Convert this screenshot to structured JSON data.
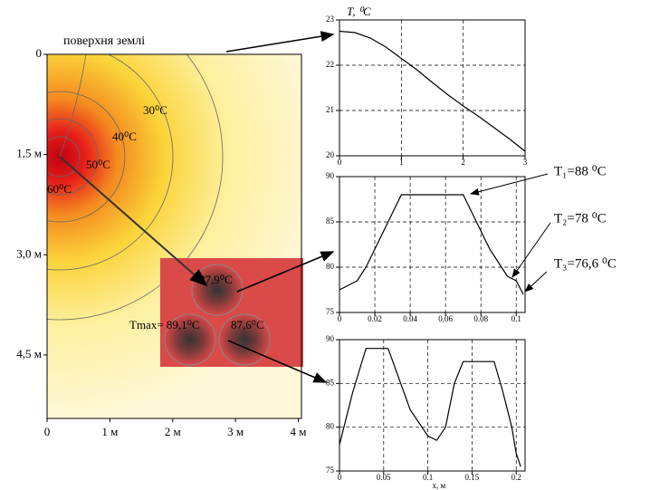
{
  "chart_data": [
    {
      "type": "heatmap",
      "xlim": [
        0,
        4.05
      ],
      "ylim": [
        0,
        5.45
      ],
      "xticks": [
        0,
        {
          "value": 1,
          "label": "1 м"
        },
        {
          "value": 2,
          "label": "2 м"
        },
        {
          "value": 3,
          "label": "3 м"
        },
        {
          "value": 4,
          "label": "4 м"
        }
      ],
      "yticks": [
        0,
        {
          "value": 1.5,
          "label": "1,5 м"
        },
        {
          "value": 3,
          "label": "3,0 м"
        },
        {
          "value": 4.5,
          "label": "4,5 м"
        }
      ],
      "annotations": [
        "поверхня землі",
        "30⁰C",
        "40⁰C",
        "50⁰C",
        "60⁰C",
        "87,9⁰C",
        "Tmax= 89,1⁰C",
        "87,6⁰C"
      ]
    },
    {
      "type": "line",
      "ylabel": "T, ⁰C",
      "xlim": [
        0,
        3
      ],
      "ylim": [
        20,
        23
      ],
      "xticks": [
        0,
        1,
        2,
        3
      ],
      "yticks": [
        20,
        21,
        22,
        23
      ],
      "grid": true,
      "color": "#000",
      "x": [
        0,
        0.25,
        0.5,
        0.75,
        1,
        1.25,
        1.5,
        1.75,
        2,
        2.25,
        2.5,
        2.75,
        3
      ],
      "values": [
        22.75,
        22.72,
        22.6,
        22.4,
        22.15,
        21.9,
        21.62,
        21.35,
        21.1,
        20.87,
        20.62,
        20.37,
        20.1
      ]
    },
    {
      "type": "line",
      "xlim": [
        0,
        0.105
      ],
      "ylim": [
        75,
        90
      ],
      "xticks": [
        0,
        0.02,
        0.04,
        0.06,
        0.08,
        0.1
      ],
      "yticks": [
        75,
        80,
        85,
        90
      ],
      "grid": true,
      "color": "#000",
      "x": [
        0,
        0.005,
        0.01,
        0.015,
        0.02,
        0.025,
        0.03,
        0.035,
        0.07,
        0.075,
        0.08,
        0.085,
        0.09,
        0.095,
        0.1,
        0.104
      ],
      "values": [
        77.5,
        78,
        78.5,
        80,
        82,
        84,
        86,
        88,
        88,
        86,
        84,
        82,
        80.5,
        79,
        78.5,
        77
      ],
      "annotations": [
        "T₁=88 ⁰C",
        "T₂=78 ⁰C",
        "T₃=76,6 ⁰C"
      ]
    },
    {
      "type": "line",
      "xlabel": "x, м",
      "xlim": [
        0,
        0.21
      ],
      "ylim": [
        75,
        90
      ],
      "xticks": [
        0,
        0.05,
        0.1,
        0.15,
        0.2
      ],
      "yticks": [
        75,
        80,
        85,
        90
      ],
      "grid": true,
      "color": "#000",
      "x": [
        0,
        0.005,
        0.015,
        0.03,
        0.055,
        0.08,
        0.1,
        0.11,
        0.12,
        0.13,
        0.14,
        0.175,
        0.185,
        0.195,
        0.2,
        0.205
      ],
      "values": [
        78,
        80,
        84,
        89,
        89,
        82,
        79,
        78.5,
        80,
        85,
        87.5,
        87.5,
        84,
        80,
        77,
        75.5
      ]
    }
  ]
}
